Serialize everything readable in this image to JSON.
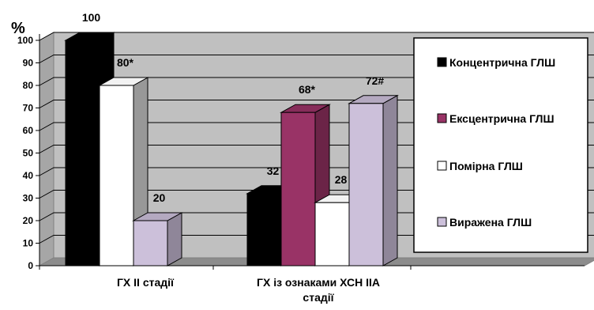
{
  "chart_data": {
    "type": "bar",
    "y_unit": "%",
    "ylim": [
      0,
      100
    ],
    "y_ticks": [
      0,
      10,
      20,
      30,
      40,
      50,
      60,
      70,
      80,
      90,
      100
    ],
    "grid": true,
    "legend_position": "right",
    "categories": [
      "ГХ ІІ стадії",
      "ГХ із ознаками ХСН ІІА стадії"
    ],
    "category_lines": [
      [
        "ГХ ІІ стадії"
      ],
      [
        "ГХ із ознаками ХСН ІІА",
        "стадії"
      ]
    ],
    "series": [
      {
        "name": "Концентрична ГЛШ",
        "color": "#000000",
        "values": [
          100,
          32
        ],
        "labels": [
          "100",
          "32"
        ]
      },
      {
        "name": "Ексцентрична ГЛШ",
        "color": "#993366",
        "values": [
          0,
          68
        ],
        "labels": [
          "",
          "68*"
        ]
      },
      {
        "name": "Помірна ГЛШ",
        "color": "#ffffff",
        "values": [
          80,
          28
        ],
        "labels": [
          "80*",
          "28"
        ]
      },
      {
        "name": "Виражена ГЛШ",
        "color": "#ccc0da",
        "values": [
          20,
          72
        ],
        "labels": [
          "20",
          "72#"
        ]
      }
    ]
  }
}
